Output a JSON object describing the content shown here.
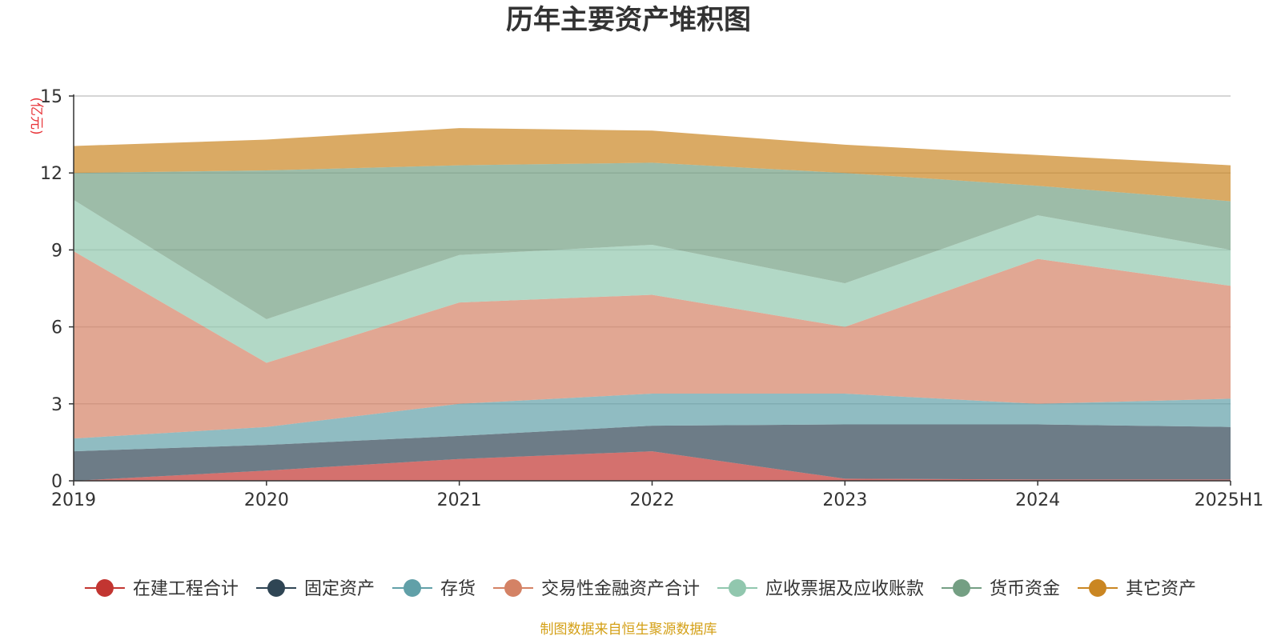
{
  "chart_data": {
    "type": "area",
    "stacked": true,
    "title": "历年主要资产堆积图",
    "unit_label": "(亿元)",
    "x": [
      "2019",
      "2020",
      "2021",
      "2022",
      "2023",
      "2024",
      "2025H1"
    ],
    "ylim": [
      0,
      15
    ],
    "yticks": [
      0,
      3,
      6,
      9,
      12,
      15
    ],
    "grid": true,
    "legend_position": "bottom",
    "series": [
      {
        "name": "在建工程合计",
        "color": "#c23531",
        "values": [
          0.0,
          0.4,
          0.85,
          1.15,
          0.08,
          0.05,
          0.05
        ]
      },
      {
        "name": "固定资产",
        "color": "#2f4554",
        "values": [
          1.15,
          1.0,
          0.9,
          1.0,
          2.12,
          2.15,
          2.05
        ]
      },
      {
        "name": "存货",
        "color": "#61a0a8",
        "values": [
          0.5,
          0.7,
          1.25,
          1.25,
          1.2,
          0.8,
          1.1
        ]
      },
      {
        "name": "交易性金融资产合计",
        "color": "#d48265",
        "values": [
          7.3,
          2.5,
          3.95,
          3.85,
          2.6,
          5.65,
          4.4
        ]
      },
      {
        "name": "应收票据及应收账款",
        "color": "#91c7ae",
        "values": [
          2.0,
          1.7,
          1.85,
          1.95,
          1.7,
          1.7,
          1.4
        ]
      },
      {
        "name": "货币资金",
        "color": "#749f83",
        "values": [
          1.05,
          5.8,
          3.5,
          3.2,
          4.3,
          1.15,
          1.9
        ]
      },
      {
        "name": "其它资产",
        "color": "#ca8622",
        "values": [
          1.05,
          1.2,
          1.45,
          1.25,
          1.1,
          1.2,
          1.4
        ]
      }
    ]
  },
  "footer": {
    "source": "制图数据来自恒生聚源数据库",
    "source_color": "#d4a017"
  }
}
